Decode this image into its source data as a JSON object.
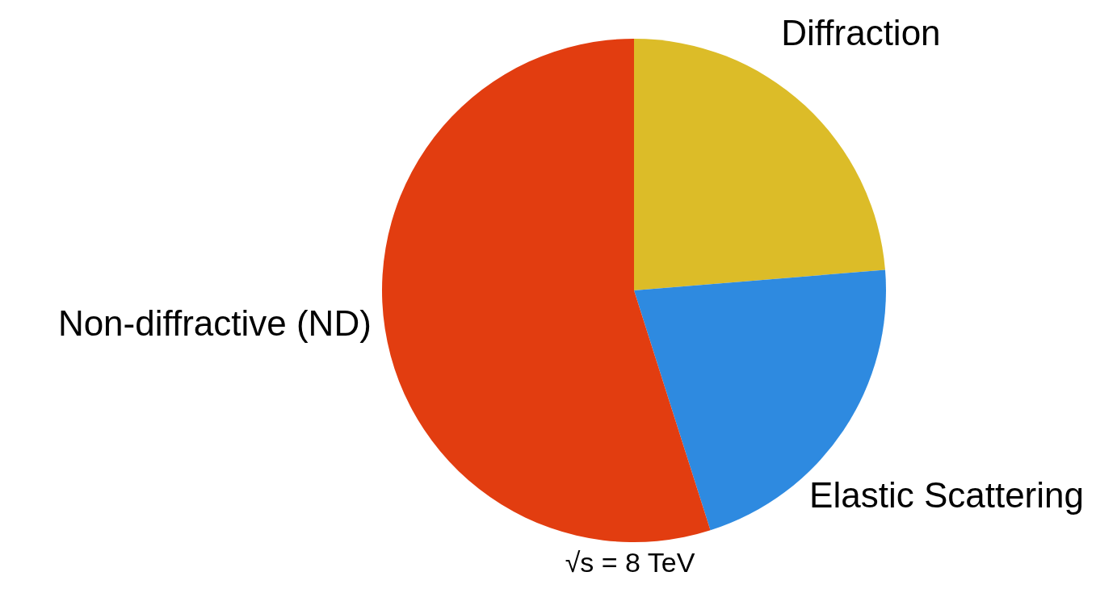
{
  "chart_data": {
    "type": "pie",
    "categories": [
      "Diffraction",
      "Elastic Scattering",
      "Non-diffractive (ND)"
    ],
    "values": [
      23.7,
      21.4,
      54.9
    ],
    "colors": [
      "#dcbc28",
      "#2e8ae0",
      "#e23d10"
    ],
    "annotations": [
      "√s = 8 TeV"
    ]
  }
}
